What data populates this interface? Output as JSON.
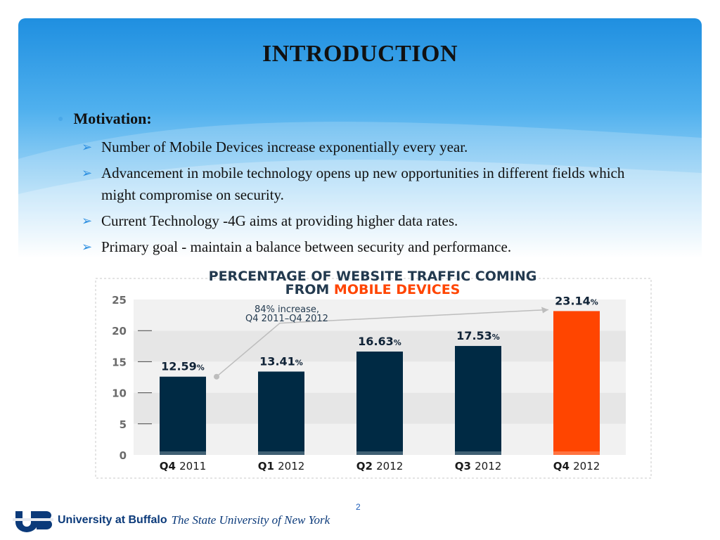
{
  "slide": {
    "title": "INTRODUCTION",
    "motivation_label": "Motivation:",
    "bullets": [
      "Number of Mobile Devices increase exponentially every year.",
      "Advancement in mobile technology opens up new opportunities in different fields which might compromise on security.",
      "Current Technology -4G aims at providing higher data rates.",
      "Primary goal - maintain a balance between security and performance."
    ],
    "page_number": "2",
    "footer": {
      "university": "University at Buffalo",
      "suny": "The State University of New York"
    }
  },
  "colors": {
    "bar_default": "#002a44",
    "bar_highlight": "#ff4500",
    "title_dark": "#233a4f",
    "title_accent": "#ff4500"
  },
  "chart_data": {
    "type": "bar",
    "title_line1": "PERCENTAGE OF WEBSITE TRAFFIC COMING",
    "title_line2_prefix": "FROM",
    "title_line2_accent": "MOBILE DEVICES",
    "categories": [
      {
        "bold": "Q4",
        "light": "2011"
      },
      {
        "bold": "Q1",
        "light": "2012"
      },
      {
        "bold": "Q2",
        "light": "2012"
      },
      {
        "bold": "Q3",
        "light": "2012"
      },
      {
        "bold": "Q4",
        "light": "2012"
      }
    ],
    "values": [
      12.59,
      13.41,
      16.63,
      17.53,
      23.14
    ],
    "value_labels": [
      "12.59",
      "13.41",
      "16.63",
      "17.53",
      "23.14"
    ],
    "value_suffix": "%",
    "highlight_index": 4,
    "ylim": [
      0,
      25
    ],
    "yticks": [
      0,
      5,
      10,
      15,
      20,
      25
    ],
    "annotation_line1": "84% increase,",
    "annotation_line2": "Q4 2011–Q4 2012",
    "grid": "horizontal bands"
  }
}
